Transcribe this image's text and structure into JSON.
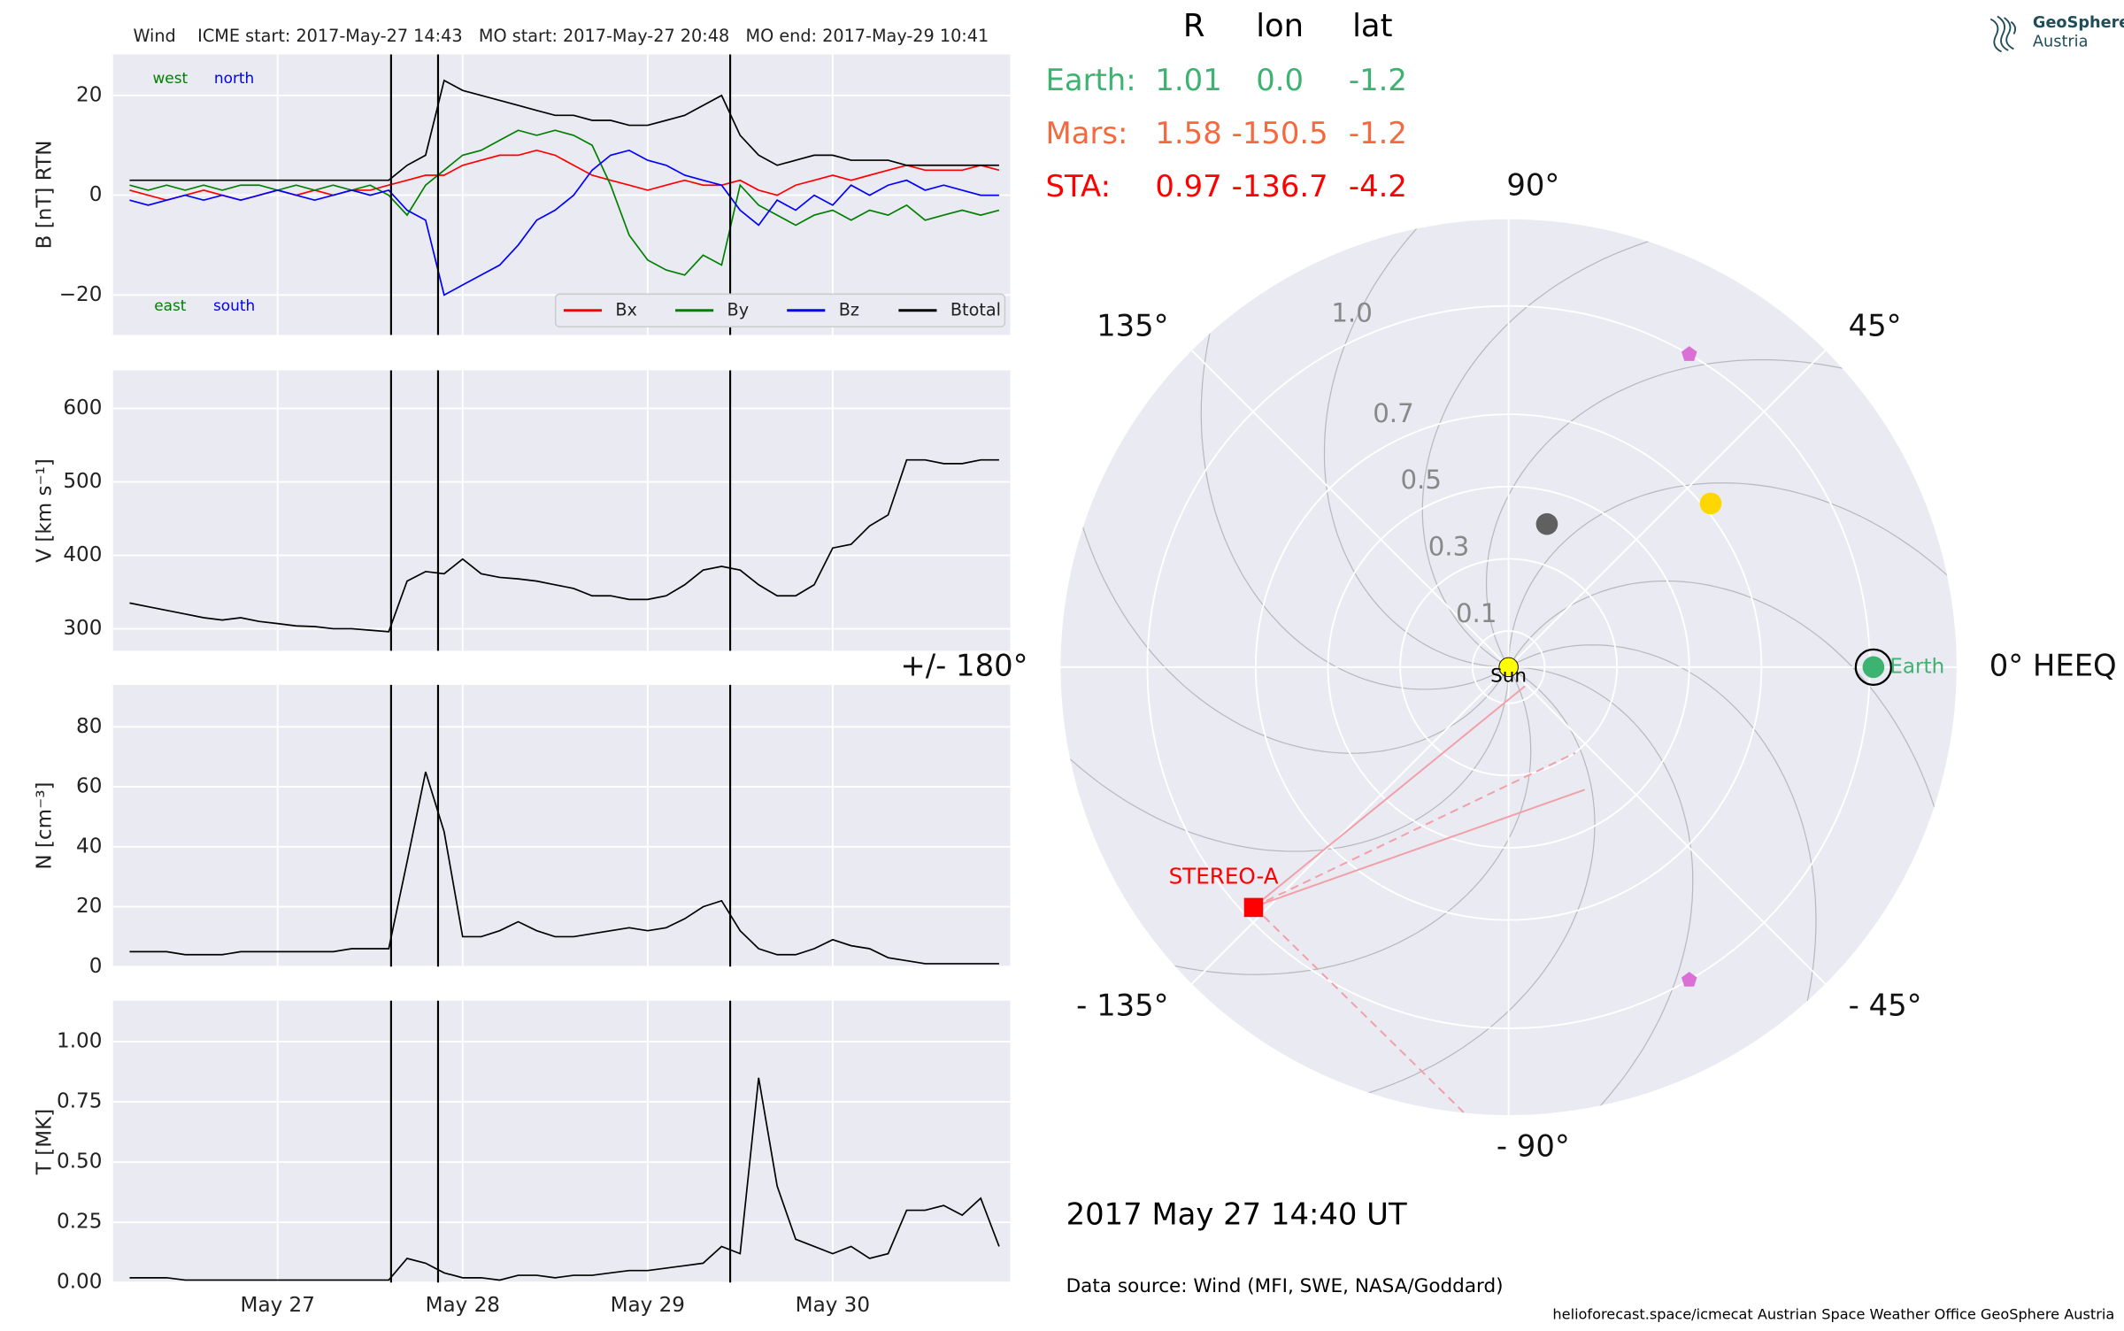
{
  "chart_data": [
    {
      "type": "line",
      "title": "Wind    ICME start: 2017-May-27 14:43   MO start: 2017-May-27 20:48   MO end: 2017-May-29 10:41",
      "ylabel": "B [nT] RTN",
      "grid": true,
      "legend": "lower right",
      "xlim": [
        26.11,
        30.96
      ],
      "xticks": [
        27,
        28,
        29,
        30
      ],
      "ylim": [
        -28,
        28.2
      ],
      "yticks": [
        {
          "value": -20,
          "label": "−20"
        },
        0,
        20
      ],
      "vlines": [
        27.613,
        27.867,
        29.446
      ],
      "annotations": [
        {
          "text": "west",
          "color": "#008000"
        },
        {
          "text": "north",
          "color": "#0000ff"
        },
        {
          "text": "east",
          "color": "#008000"
        },
        {
          "text": "south",
          "color": "#0000ff"
        }
      ],
      "x": [
        26.2,
        26.3,
        26.4,
        26.5,
        26.6,
        26.7,
        26.8,
        26.9,
        27,
        27.1,
        27.2,
        27.3,
        27.4,
        27.5,
        27.6,
        27.7,
        27.8,
        27.9,
        28,
        28.1,
        28.2,
        28.3,
        28.4,
        28.5,
        28.6,
        28.7,
        28.8,
        28.9,
        29,
        29.1,
        29.2,
        29.3,
        29.4,
        29.5,
        29.6,
        29.7,
        29.8,
        29.9,
        30,
        30.1,
        30.2,
        30.3,
        30.4,
        30.5,
        30.6,
        30.7,
        30.8,
        30.9
      ],
      "series": [
        {
          "name": "Bx",
          "color": "#ff0000",
          "values": [
            1,
            0,
            -1,
            0,
            1,
            0,
            -1,
            0,
            1,
            0,
            1,
            0,
            1,
            1,
            2,
            3,
            4,
            4,
            6,
            7,
            8,
            8,
            9,
            8,
            6,
            4,
            3,
            2,
            1,
            2,
            3,
            2,
            2,
            3,
            1,
            0,
            2,
            3,
            4,
            3,
            4,
            5,
            6,
            5,
            5,
            5,
            6,
            5
          ]
        },
        {
          "name": "By",
          "color": "#008000",
          "values": [
            2,
            1,
            2,
            1,
            2,
            1,
            2,
            2,
            1,
            2,
            1,
            2,
            1,
            2,
            0,
            -4,
            2,
            5,
            8,
            9,
            11,
            13,
            12,
            13,
            12,
            10,
            2,
            -8,
            -13,
            -15,
            -16,
            -12,
            -14,
            2,
            -2,
            -4,
            -6,
            -4,
            -3,
            -5,
            -3,
            -4,
            -2,
            -5,
            -4,
            -3,
            -4,
            -3
          ]
        },
        {
          "name": "Bz",
          "color": "#0000ff",
          "values": [
            -1,
            -2,
            -1,
            0,
            -1,
            0,
            -1,
            0,
            1,
            0,
            -1,
            0,
            1,
            0,
            1,
            -3,
            -5,
            -20,
            -18,
            -16,
            -14,
            -10,
            -5,
            -3,
            0,
            5,
            8,
            9,
            7,
            6,
            4,
            3,
            2,
            -3,
            -6,
            -1,
            -3,
            0,
            -2,
            2,
            0,
            2,
            3,
            1,
            2,
            1,
            0,
            0
          ]
        },
        {
          "name": "Btotal",
          "color": "#000000",
          "values": [
            3,
            3,
            3,
            3,
            3,
            3,
            3,
            3,
            3,
            3,
            3,
            3,
            3,
            3,
            3,
            6,
            8,
            23,
            21,
            20,
            19,
            18,
            17,
            16,
            16,
            15,
            15,
            14,
            14,
            15,
            16,
            18,
            20,
            12,
            8,
            6,
            7,
            8,
            8,
            7,
            7,
            7,
            6,
            6,
            6,
            6,
            6,
            6
          ]
        }
      ]
    },
    {
      "type": "line",
      "ylabel": "V [km s⁻¹]",
      "grid": true,
      "xlim": [
        26.11,
        30.96
      ],
      "xticks": [
        27,
        28,
        29,
        30
      ],
      "ylim": [
        270,
        652
      ],
      "yticks": [
        300,
        400,
        500,
        600
      ],
      "vlines": [
        27.613,
        27.867,
        29.446
      ],
      "x": [
        26.2,
        26.3,
        26.4,
        26.5,
        26.6,
        26.7,
        26.8,
        26.9,
        27,
        27.1,
        27.2,
        27.3,
        27.4,
        27.5,
        27.6,
        27.7,
        27.8,
        27.9,
        28,
        28.1,
        28.2,
        28.3,
        28.4,
        28.5,
        28.6,
        28.7,
        28.8,
        28.9,
        29,
        29.1,
        29.2,
        29.3,
        29.4,
        29.5,
        29.6,
        29.7,
        29.8,
        29.9,
        30,
        30.1,
        30.2,
        30.3,
        30.4,
        30.5,
        30.6,
        30.7,
        30.8,
        30.9
      ],
      "series": [
        {
          "color": "#000000",
          "values": [
            335,
            330,
            325,
            320,
            315,
            312,
            315,
            310,
            307,
            304,
            303,
            300,
            300,
            298,
            296,
            365,
            378,
            375,
            395,
            375,
            370,
            368,
            365,
            360,
            355,
            345,
            345,
            340,
            340,
            345,
            360,
            380,
            385,
            380,
            360,
            345,
            345,
            360,
            410,
            415,
            440,
            455,
            530,
            530,
            525,
            525,
            530,
            530
          ]
        }
      ]
    },
    {
      "type": "line",
      "ylabel": "N [cm⁻³]",
      "grid": true,
      "xlim": [
        26.11,
        30.96
      ],
      "xticks": [
        27,
        28,
        29,
        30
      ],
      "ylim": [
        0,
        94
      ],
      "yticks": [
        0,
        20,
        40,
        60,
        80
      ],
      "vlines": [
        27.613,
        27.867,
        29.446
      ],
      "x": [
        26.2,
        26.3,
        26.4,
        26.5,
        26.6,
        26.7,
        26.8,
        26.9,
        27,
        27.1,
        27.2,
        27.3,
        27.4,
        27.5,
        27.6,
        27.7,
        27.8,
        27.9,
        28,
        28.1,
        28.2,
        28.3,
        28.4,
        28.5,
        28.6,
        28.7,
        28.8,
        28.9,
        29,
        29.1,
        29.2,
        29.3,
        29.4,
        29.5,
        29.6,
        29.7,
        29.8,
        29.9,
        30,
        30.1,
        30.2,
        30.3,
        30.4,
        30.5,
        30.6,
        30.7,
        30.8,
        30.9
      ],
      "series": [
        {
          "color": "#000000",
          "values": [
            5,
            5,
            5,
            4,
            4,
            4,
            5,
            5,
            5,
            5,
            5,
            5,
            6,
            6,
            6,
            35,
            65,
            45,
            10,
            10,
            12,
            15,
            12,
            10,
            10,
            11,
            12,
            13,
            12,
            13,
            16,
            20,
            22,
            12,
            6,
            4,
            4,
            6,
            9,
            7,
            6,
            3,
            2,
            1,
            1,
            1,
            1,
            1
          ]
        }
      ]
    },
    {
      "type": "line",
      "ylabel": "T [MK]",
      "grid": true,
      "xlim": [
        26.11,
        30.96
      ],
      "xticks": [
        {
          "value": 27,
          "label": "May 27"
        },
        {
          "value": 28,
          "label": "May 28"
        },
        {
          "value": 29,
          "label": "May 29"
        },
        {
          "value": 30,
          "label": "May 30"
        }
      ],
      "ylim": [
        0,
        1.17
      ],
      "yticks": [
        {
          "value": 0,
          "label": "0.00"
        },
        {
          "value": 0.25,
          "label": "0.25"
        },
        {
          "value": 0.5,
          "label": "0.50"
        },
        {
          "value": 0.75,
          "label": "0.75"
        },
        {
          "value": 1,
          "label": "1.00"
        }
      ],
      "vlines": [
        27.613,
        27.867,
        29.446
      ],
      "x": [
        26.2,
        26.3,
        26.4,
        26.5,
        26.6,
        26.7,
        26.8,
        26.9,
        27,
        27.1,
        27.2,
        27.3,
        27.4,
        27.5,
        27.6,
        27.7,
        27.8,
        27.9,
        28,
        28.1,
        28.2,
        28.3,
        28.4,
        28.5,
        28.6,
        28.7,
        28.8,
        28.9,
        29,
        29.1,
        29.2,
        29.3,
        29.4,
        29.5,
        29.6,
        29.7,
        29.8,
        29.9,
        30,
        30.1,
        30.2,
        30.3,
        30.4,
        30.5,
        30.6,
        30.7,
        30.8,
        30.9
      ],
      "series": [
        {
          "color": "#000000",
          "values": [
            0.02,
            0.02,
            0.02,
            0.01,
            0.01,
            0.01,
            0.01,
            0.01,
            0.01,
            0.01,
            0.01,
            0.01,
            0.01,
            0.01,
            0.01,
            0.1,
            0.08,
            0.04,
            0.02,
            0.02,
            0.01,
            0.03,
            0.03,
            0.02,
            0.03,
            0.03,
            0.04,
            0.05,
            0.05,
            0.06,
            0.07,
            0.08,
            0.15,
            0.12,
            0.85,
            0.4,
            0.18,
            0.15,
            0.12,
            0.15,
            0.1,
            0.12,
            0.3,
            0.3,
            0.32,
            0.28,
            0.35,
            0.15
          ]
        }
      ]
    },
    {
      "type": "polar",
      "grid": true,
      "rlim": [
        0,
        1.24
      ],
      "rticks": [
        0.1,
        0.3,
        0.5,
        0.7,
        {
          "value": 1,
          "label": "1.0"
        }
      ],
      "thetaticks": [
        {
          "value": 0,
          "label": "0° HEEQ"
        },
        {
          "value": 45,
          "label": "45°"
        },
        {
          "value": 90,
          "label": "90°"
        },
        {
          "value": 135,
          "label": "135°"
        },
        {
          "value": 180,
          "label": "+/- 180°"
        },
        {
          "value": -135,
          "label": "- 135°"
        },
        {
          "value": -90,
          "label": "- 90°"
        },
        {
          "value": -45,
          "label": "- 45°"
        }
      ],
      "points": [
        {
          "r": 0.41,
          "lon": 75,
          "color": "#606060",
          "marker": "circle",
          "size": 8
        },
        {
          "r": 0.72,
          "lon": 39,
          "color": "#ffd700",
          "marker": "circle",
          "size": 8
        },
        {
          "r": 1.0,
          "lon": 60,
          "color": "#da70d6",
          "marker": "pentagon",
          "size": 6
        },
        {
          "r": 1.0,
          "lon": -60,
          "color": "#da70d6",
          "marker": "pentagon",
          "size": 6
        },
        {
          "name": "Earth",
          "r": 1.01,
          "lon": 0,
          "color": "#3cb371",
          "marker": "circle",
          "size": 8,
          "ring": true
        },
        {
          "name": "STEREO-A",
          "r": 0.97,
          "lon": -136.7,
          "color": "#ff0000",
          "marker": "square",
          "size": 7
        },
        {
          "name": "Sun",
          "r": 0,
          "lon": 0,
          "color": "#ffff00",
          "marker": "circle",
          "size": 7,
          "label_color": "#000000"
        }
      ]
    }
  ],
  "positions_table": {
    "header": [
      "R",
      "lon",
      "lat"
    ],
    "rows": [
      {
        "name": "Earth:",
        "color": "#3cb371",
        "cells": [
          "1.01",
          "0.0",
          "-1.2"
        ]
      },
      {
        "name": "Mars:",
        "color": "#f4693f",
        "cells": [
          "1.58",
          "-150.5",
          "-1.2"
        ]
      },
      {
        "name": "STA:",
        "color": "#ff0000",
        "cells": [
          "0.97",
          "-136.7",
          "-4.2"
        ]
      }
    ]
  },
  "timestamp": "2017 May 27  14:40 UT",
  "data_source": "Data source: Wind (MFI, SWE, NASA/Goddard)",
  "footer": "helioforecast.space/icmecat   Austrian Space Weather Office   GeoSphere Austria",
  "logo": {
    "line1": "GeoSphere",
    "line2": "Austria"
  }
}
